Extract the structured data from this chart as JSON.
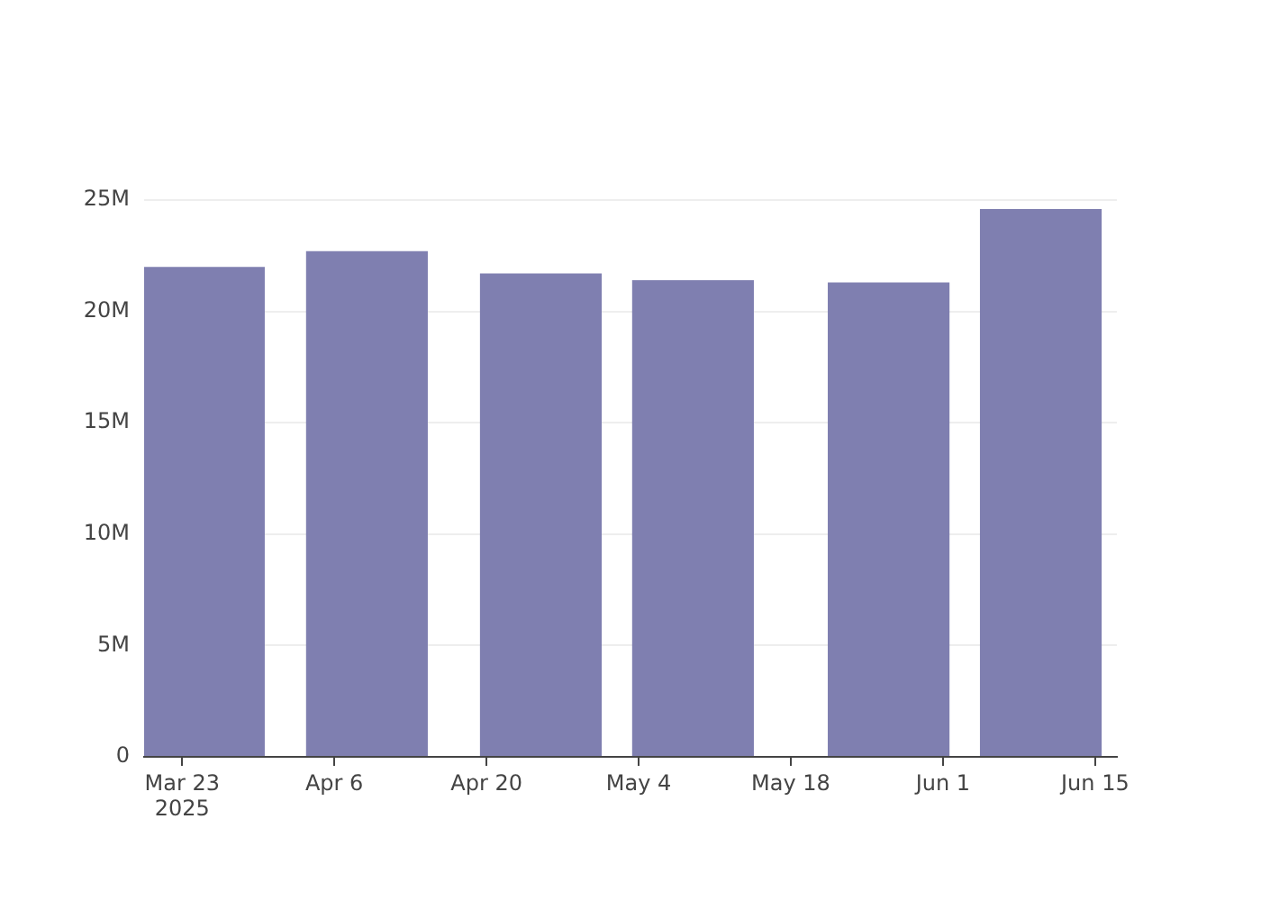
{
  "chart_data": {
    "type": "bar",
    "x": [
      "2025-03-25",
      "2025-04-09",
      "2025-04-25",
      "2025-05-09",
      "2025-05-27",
      "2025-06-10"
    ],
    "values": [
      22000000,
      22700000,
      21700000,
      21400000,
      21300000,
      24600000
    ],
    "color": "#7f7fb0",
    "xlim": [
      "2025-03-19T12:00",
      "2025-06-17"
    ],
    "xticks": [
      {
        "value": "2025-03-23",
        "label": "Mar 23\n2025"
      },
      {
        "value": "2025-04-06",
        "label": "Apr 6"
      },
      {
        "value": "2025-04-20",
        "label": "Apr 20"
      },
      {
        "value": "2025-05-04",
        "label": "May 4"
      },
      {
        "value": "2025-05-18",
        "label": "May 18"
      },
      {
        "value": "2025-06-01",
        "label": "Jun 1"
      },
      {
        "value": "2025-06-15",
        "label": "Jun 15"
      }
    ],
    "ylim": [
      0,
      25000000
    ],
    "yticks": [
      {
        "value": 0,
        "label": "0"
      },
      {
        "value": 5000000,
        "label": "5M"
      },
      {
        "value": 10000000,
        "label": "10M"
      },
      {
        "value": 15000000,
        "label": "15M"
      },
      {
        "value": 20000000,
        "label": "20M"
      },
      {
        "value": 25000000,
        "label": "25M"
      }
    ],
    "grid": "y"
  }
}
